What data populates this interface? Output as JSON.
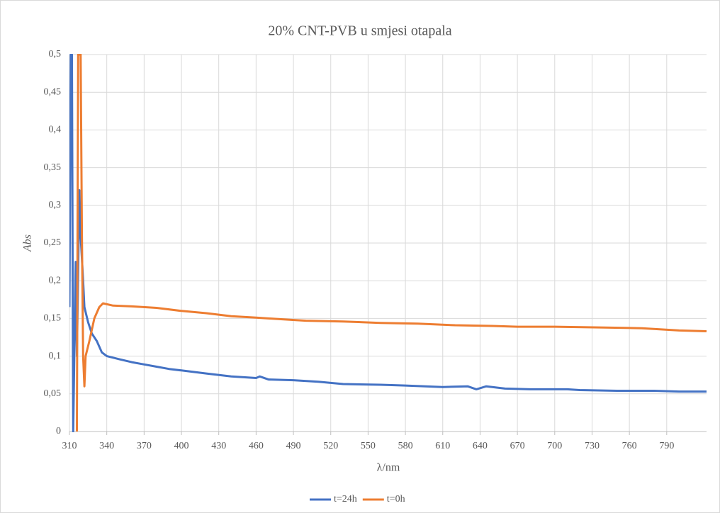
{
  "chart_data": {
    "type": "line",
    "title": "20% CNT-PVB u smjesi otapala",
    "xlabel": "λ/nm",
    "ylabel": "Abs",
    "xlim": [
      310,
      822
    ],
    "ylim": [
      0,
      0.5
    ],
    "xticks": [
      310,
      340,
      370,
      400,
      430,
      460,
      490,
      520,
      550,
      580,
      610,
      640,
      670,
      700,
      730,
      760,
      790
    ],
    "yticks": [
      {
        "value": 0,
        "label": "0"
      },
      {
        "value": 0.05,
        "label": "0,05"
      },
      {
        "value": 0.1,
        "label": "0,1"
      },
      {
        "value": 0.15,
        "label": "0,15"
      },
      {
        "value": 0.2,
        "label": "0,2"
      },
      {
        "value": 0.25,
        "label": "0,25"
      },
      {
        "value": 0.3,
        "label": "0,3"
      },
      {
        "value": 0.35,
        "label": "0,35"
      },
      {
        "value": 0.4,
        "label": "0,4"
      },
      {
        "value": 0.45,
        "label": "0,45"
      },
      {
        "value": 0.5,
        "label": "0,5"
      }
    ],
    "grid": true,
    "legend": "bottom",
    "series": [
      {
        "name": "t=24h",
        "color": "#4472c4",
        "x": [
          310,
          311,
          312,
          313,
          315,
          316,
          318,
          319,
          321,
          322,
          325,
          328,
          332,
          336,
          340,
          350,
          360,
          370,
          380,
          390,
          400,
          420,
          440,
          460,
          463,
          470,
          490,
          510,
          530,
          560,
          580,
          610,
          630,
          637,
          645,
          660,
          680,
          710,
          720,
          750,
          780,
          800,
          822
        ],
        "values": [
          0.165,
          0.5,
          0.5,
          0,
          0.225,
          0.1,
          0.32,
          0.26,
          0.2,
          0.165,
          0.145,
          0.13,
          0.12,
          0.105,
          0.1,
          0.096,
          0.092,
          0.089,
          0.086,
          0.083,
          0.081,
          0.077,
          0.073,
          0.071,
          0.073,
          0.069,
          0.068,
          0.066,
          0.063,
          0.062,
          0.061,
          0.059,
          0.06,
          0.056,
          0.06,
          0.057,
          0.056,
          0.056,
          0.055,
          0.054,
          0.054,
          0.053,
          0.053
        ]
      },
      {
        "name": "t=0h",
        "color": "#ed7d31",
        "x": [
          316,
          317,
          319,
          320,
          321,
          322,
          323,
          326,
          330,
          334,
          337,
          345,
          360,
          380,
          400,
          420,
          440,
          460,
          480,
          500,
          530,
          560,
          590,
          620,
          650,
          670,
          700,
          740,
          770,
          800,
          822
        ],
        "values": [
          0,
          0.5,
          0.5,
          0.26,
          0.1,
          0.06,
          0.1,
          0.12,
          0.15,
          0.165,
          0.17,
          0.167,
          0.166,
          0.164,
          0.16,
          0.157,
          0.153,
          0.151,
          0.149,
          0.147,
          0.146,
          0.144,
          0.143,
          0.141,
          0.14,
          0.139,
          0.139,
          0.138,
          0.137,
          0.134,
          0.133
        ]
      }
    ]
  }
}
